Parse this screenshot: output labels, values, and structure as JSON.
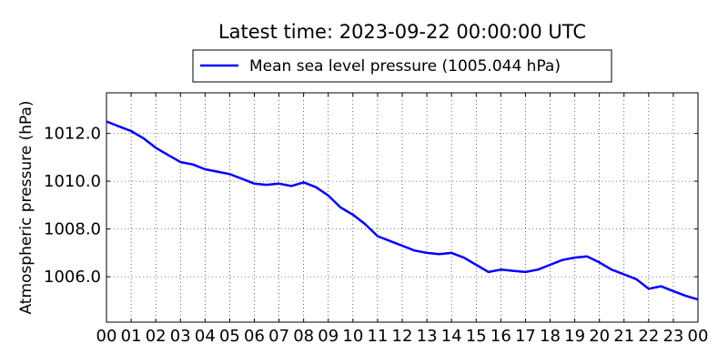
{
  "chart_data": {
    "type": "line",
    "title": "Latest time: 2023-09-22 00:00:00 UTC",
    "xlabel": "",
    "ylabel": "Atmospheric pressure (hPa)",
    "x_tick_labels": [
      "00",
      "01",
      "02",
      "03",
      "04",
      "05",
      "06",
      "07",
      "08",
      "09",
      "10",
      "11",
      "12",
      "13",
      "14",
      "15",
      "16",
      "17",
      "18",
      "19",
      "20",
      "21",
      "22",
      "23",
      "00"
    ],
    "y_ticks": [
      1006.0,
      1008.0,
      1010.0,
      1012.0
    ],
    "y_tick_labels": [
      "1006.0",
      "1008.0",
      "1010.0",
      "1012.0"
    ],
    "xlim": [
      0,
      24
    ],
    "ylim": [
      1004.1,
      1013.7
    ],
    "grid": true,
    "legend_position": "top-center",
    "series": [
      {
        "name": "Mean sea level pressure (1005.044 hPa)",
        "color": "#0000ff",
        "x": [
          0,
          0.5,
          1,
          1.5,
          2,
          2.5,
          3,
          3.5,
          4,
          4.5,
          5,
          5.5,
          6,
          6.5,
          7,
          7.5,
          8,
          8.5,
          9,
          9.5,
          10,
          10.5,
          11,
          11.5,
          12,
          12.5,
          13,
          13.5,
          14,
          14.5,
          15,
          15.5,
          16,
          16.5,
          17,
          17.5,
          18,
          18.5,
          19,
          19.5,
          20,
          20.5,
          21,
          21.5,
          22,
          22.5,
          23,
          23.5,
          24
        ],
        "y": [
          1012.5,
          1012.3,
          1012.1,
          1011.8,
          1011.4,
          1011.1,
          1010.8,
          1010.7,
          1010.5,
          1010.4,
          1010.3,
          1010.1,
          1009.9,
          1009.85,
          1009.9,
          1009.8,
          1009.95,
          1009.75,
          1009.4,
          1008.9,
          1008.6,
          1008.2,
          1007.7,
          1007.5,
          1007.3,
          1007.1,
          1007.0,
          1006.95,
          1007.0,
          1006.8,
          1006.5,
          1006.2,
          1006.3,
          1006.25,
          1006.2,
          1006.3,
          1006.5,
          1006.7,
          1006.8,
          1006.85,
          1006.6,
          1006.3,
          1006.1,
          1005.9,
          1005.5,
          1005.6,
          1005.4,
          1005.2,
          1005.05
        ]
      }
    ]
  }
}
